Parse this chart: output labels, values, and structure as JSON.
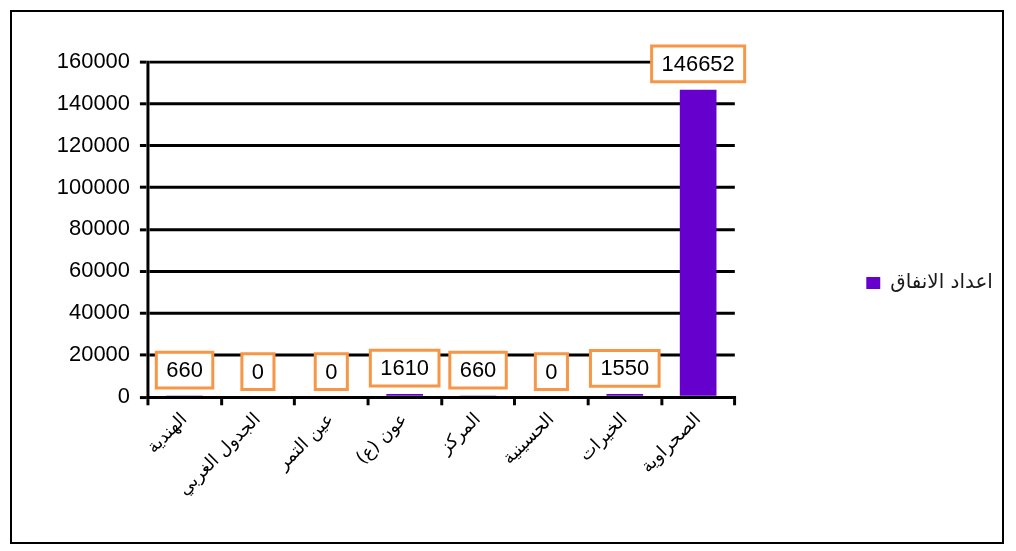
{
  "chart_data": {
    "type": "bar",
    "categories": [
      "الهندية",
      "الجدول الغربي",
      "عين التمر",
      "عون (ع)",
      "المركز",
      "الحسينية",
      "الخيرات",
      "الصحراوية"
    ],
    "series": [
      {
        "name": "اعداد الانفاق",
        "color": "#6600cc",
        "values": [
          660,
          0,
          0,
          1610,
          660,
          0,
          1550,
          146652
        ]
      }
    ],
    "ylim": [
      0,
      160000
    ],
    "yticks": [
      0,
      20000,
      40000,
      60000,
      80000,
      100000,
      120000,
      140000,
      160000
    ],
    "grid": "y",
    "legend": "right",
    "data_labels": true
  }
}
